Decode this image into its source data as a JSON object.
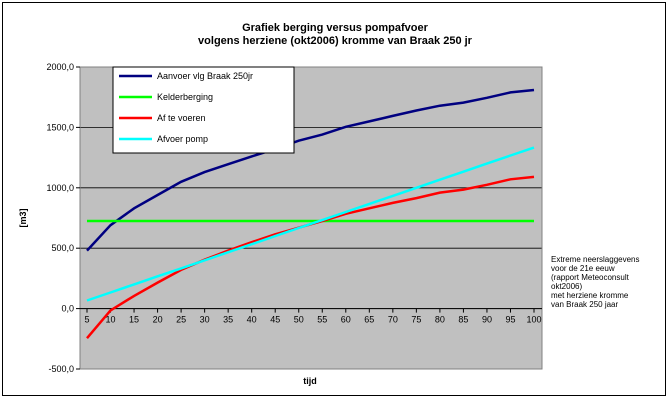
{
  "chart_data": {
    "type": "line",
    "title": [
      "Grafiek berging versus pompafvoer",
      "volgens herziene (okt2006)  kromme van Braak 250 jr"
    ],
    "xlabel": "tijd",
    "ylabel": "[m3]",
    "categories": [
      5,
      10,
      15,
      20,
      25,
      30,
      35,
      40,
      45,
      50,
      55,
      60,
      65,
      70,
      75,
      80,
      85,
      90,
      95,
      100
    ],
    "ylim": [
      -500,
      2000
    ],
    "yticks": [
      "-500,0",
      "0,0",
      "500,0",
      "1000,0",
      "1500,0",
      "2000,0"
    ],
    "grid": true,
    "legend_position": "top-left",
    "series": [
      {
        "name": "Aanvoer vlg Braak 250jr",
        "color": "#000080",
        "values": [
          480,
          690,
          830,
          940,
          1050,
          1130,
          1195,
          1260,
          1320,
          1390,
          1440,
          1505,
          1550,
          1595,
          1640,
          1680,
          1705,
          1745,
          1790,
          1810
        ]
      },
      {
        "name": "Kelderberging",
        "color": "#00ff00",
        "values": [
          725,
          725,
          725,
          725,
          725,
          725,
          725,
          725,
          725,
          725,
          725,
          725,
          725,
          725,
          725,
          725,
          725,
          725,
          725,
          725
        ]
      },
      {
        "name": "Af te voeren",
        "color": "#ff0000",
        "values": [
          -245,
          -15,
          105,
          215,
          320,
          405,
          480,
          550,
          615,
          670,
          725,
          785,
          830,
          875,
          915,
          960,
          985,
          1025,
          1070,
          1090
        ]
      },
      {
        "name": "Afvoer pomp",
        "color": "#00ffff",
        "values": [
          67,
          133,
          200,
          267,
          333,
          400,
          467,
          533,
          600,
          667,
          733,
          800,
          867,
          933,
          1000,
          1067,
          1133,
          1200,
          1267,
          1333
        ]
      }
    ]
  },
  "note": [
    "Extreme neerslaggevens",
    "voor de 21e eeuw",
    "(rapport Meteoconsult",
    "okt2006)",
    "met herziene  kromme",
    "van Braak 250 jaar"
  ]
}
